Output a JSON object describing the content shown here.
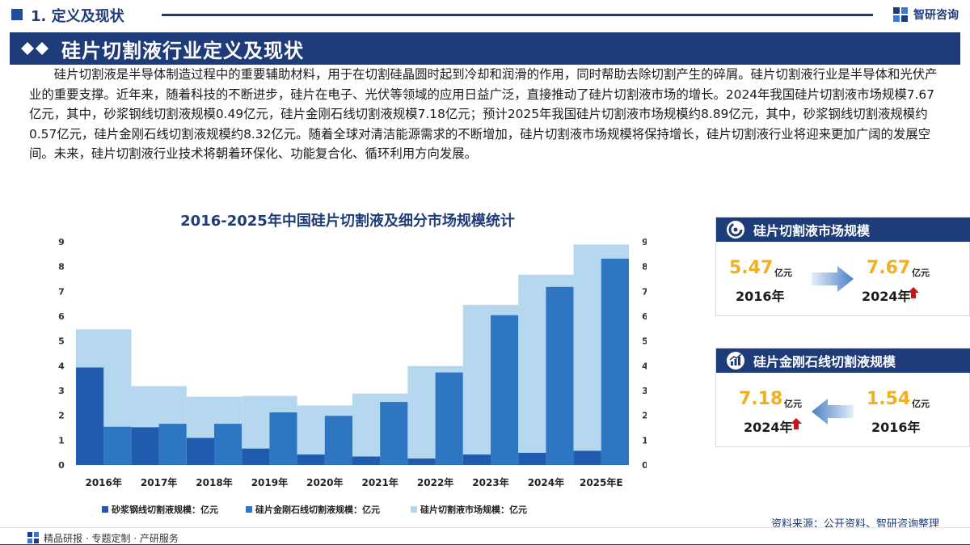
{
  "header": {
    "section_title": "1. 定义及现状",
    "brand": "智研咨询"
  },
  "banner": {
    "title": "硅片切割液行业定义及现状"
  },
  "body": {
    "paragraph": "硅片切割液是半导体制造过程中的重要辅助材料，用于在切割硅晶圆时起到冷却和润滑的作用，同时帮助去除切割产生的碎屑。硅片切割液行业是半导体和光伏产业的重要支撑。近年来，随着科技的不断进步，硅片在电子、光伏等领域的应用日益广泛，直接推动了硅片切割液市场的增长。2024年我国硅片切割液市场规模7.67亿元，其中，砂浆钢线切割液规模0.49亿元，硅片金刚石线切割液规模7.18亿元；预计2025年我国硅片切割液市场规模约8.89亿元，其中，砂浆钢线切割液规模约0.57亿元，硅片金刚石线切割液规模约8.32亿元。随着全球对清洁能源需求的不断增加，硅片切割液市场规模将保持增长，硅片切割液行业将迎来更加广阔的发展空间。未来，硅片切割液行业技术将朝着环保化、功能复合化、循环利用方向发展。"
  },
  "chart_data": {
    "type": "bar",
    "title": "2016-2025年中国硅片切割液及细分市场规模统计",
    "categories": [
      "2016年",
      "2017年",
      "2018年",
      "2019年",
      "2020年",
      "2021年",
      "2022年",
      "2023年",
      "2024年",
      "2025年E"
    ],
    "series": [
      {
        "name": "砂浆钢线切割液规模：亿元",
        "values": [
          3.93,
          1.52,
          1.09,
          0.66,
          0.42,
          0.34,
          0.26,
          0.42,
          0.49,
          0.57
        ],
        "color": "#1f5cad"
      },
      {
        "name": "硅片金刚石线切割液规模：亿元",
        "values": [
          1.54,
          1.66,
          1.66,
          2.12,
          1.98,
          2.54,
          3.73,
          6.04,
          7.18,
          8.32
        ],
        "color": "#2e75c2"
      },
      {
        "name": "硅片切割液市场规模：亿元",
        "values": [
          5.47,
          3.18,
          2.75,
          2.78,
          2.4,
          2.88,
          3.99,
          6.46,
          7.67,
          8.89
        ],
        "color": "#b6d8ef"
      }
    ],
    "ylim": [
      0,
      9
    ],
    "yticks": [
      "0",
      "1",
      "2",
      "3",
      "4",
      "5",
      "6",
      "7",
      "8",
      "9"
    ],
    "grid": false,
    "legend": "bottom"
  },
  "cards": {
    "market": {
      "title": "硅片切割液市场规模",
      "from_value": "5.47",
      "from_unit": "亿元",
      "from_year": "2016年",
      "to_value": "7.67",
      "to_unit": "亿元",
      "to_year": "2024年"
    },
    "diamond": {
      "title": "硅片金刚石线切割液规模",
      "latest_value": "7.18",
      "latest_unit": "亿元",
      "latest_year": "2024年",
      "base_value": "1.54",
      "base_unit": "亿元",
      "base_year": "2016年"
    }
  },
  "source": "资料来源：公开资料、智研咨询整理",
  "footer": "精品研报 · 专题定制 · 产研服务",
  "colors": {
    "primary": "#1f3c7a",
    "accent": "#f0b020",
    "up_arrow": "#c0181c"
  }
}
